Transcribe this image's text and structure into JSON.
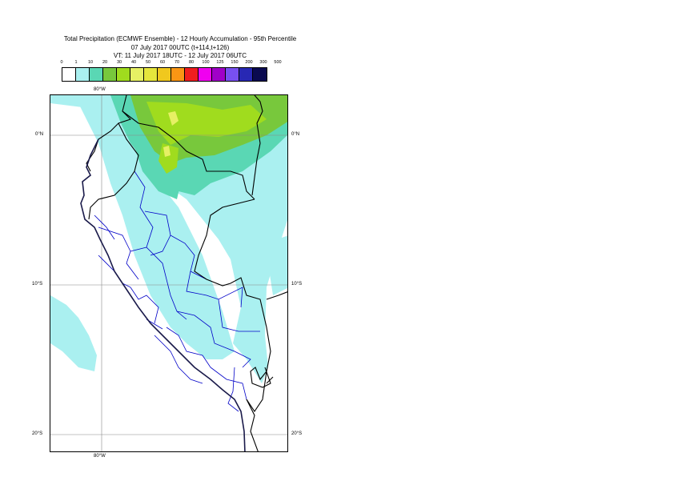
{
  "title": {
    "line1": "Total Precipitation (ECMWF Ensemble) - 12 Hourly Accumulation - 95th Percentile",
    "line2": "07 July 2017 00UTC (t+114,t+126)",
    "line3": "VT: 11 July 2017 18UTC - 12 July 2017 06UTC"
  },
  "legend": {
    "labels": [
      "0",
      "1",
      "10",
      "20",
      "30",
      "40",
      "50",
      "60",
      "70",
      "80",
      "100",
      "125",
      "150",
      "200",
      "300",
      "500"
    ],
    "colors": [
      "#ffffff",
      "#aaf0f0",
      "#5ad7b4",
      "#78c83c",
      "#a0dc1e",
      "#e6f064",
      "#e6e63c",
      "#f0c81e",
      "#fa9614",
      "#f01e1e",
      "#f000f0",
      "#a000c8",
      "#7850f0",
      "#2828b4",
      "#0a0a50"
    ]
  },
  "map": {
    "lon_labels": [
      "80°W",
      "80°W"
    ],
    "lat_labels": {
      "left": [
        "0°N",
        "10°S",
        "20°S"
      ],
      "right": [
        "0°N",
        "10°S",
        "20°S"
      ]
    }
  }
}
